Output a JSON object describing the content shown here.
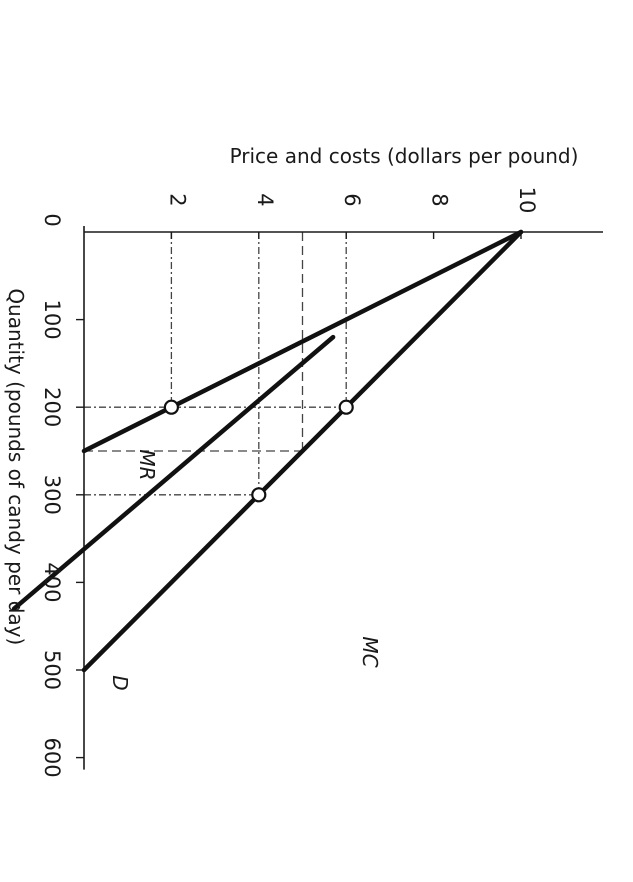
{
  "chart_data": {
    "type": "line",
    "orientation": "rotated-90-clockwise",
    "xlabel": "Quantity (pounds of candy per day)",
    "ylabel": "Price and costs (dollars per pound)",
    "xlim": [
      0,
      600
    ],
    "ylim": [
      0,
      10
    ],
    "x_ticks": [
      0,
      100,
      200,
      300,
      400,
      500,
      600
    ],
    "y_ticks": [
      2,
      4,
      6,
      8,
      10
    ],
    "grid": false,
    "series": [
      {
        "name": "D",
        "points": [
          [
            0,
            10
          ],
          [
            500,
            0
          ]
        ]
      },
      {
        "name": "MR",
        "points": [
          [
            0,
            10
          ],
          [
            250,
            0
          ]
        ]
      },
      {
        "name": "MC",
        "points": [
          [
            120,
            5.7
          ],
          [
            430,
            -1.6
          ]
        ]
      }
    ],
    "highlight_points": [
      [
        200,
        2
      ],
      [
        200,
        6
      ],
      [
        300,
        4
      ]
    ],
    "dashdot_guides": [
      {
        "from": [
          200,
          0
        ],
        "to": [
          200,
          6
        ]
      },
      {
        "from": [
          0,
          2
        ],
        "to": [
          200,
          2
        ]
      },
      {
        "from": [
          0,
          6
        ],
        "to": [
          200,
          6
        ]
      },
      {
        "from": [
          300,
          0
        ],
        "to": [
          300,
          4
        ]
      },
      {
        "from": [
          0,
          4
        ],
        "to": [
          300,
          4
        ]
      }
    ],
    "dashed_guides": [
      {
        "from": [
          250,
          0
        ],
        "to": [
          250,
          5
        ]
      },
      {
        "from": [
          0,
          5
        ],
        "to": [
          250,
          5
        ]
      }
    ]
  }
}
